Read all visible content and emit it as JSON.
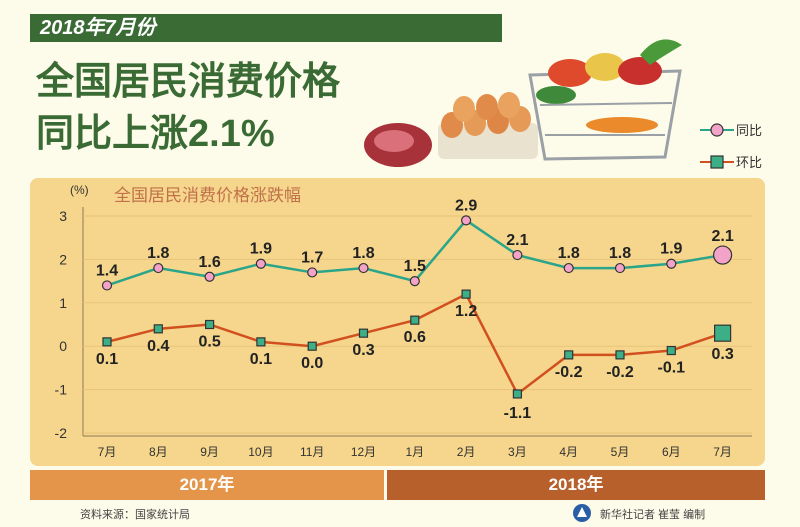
{
  "header": {
    "date": "2018年7月份",
    "headline_line1": "全国居民消费价格",
    "headline_line2": "同比上涨2.1%"
  },
  "legend": {
    "yoy": "同比",
    "mom": "环比"
  },
  "years": {
    "y2017": "2017年",
    "y2018": "2018年"
  },
  "footer": {
    "source": "资料来源：国家统计局",
    "credit": "新华社记者 崔莹 编制"
  },
  "colors": {
    "yoy_line": "#2aa58a",
    "yoy_marker": "#f4a3c8",
    "mom_line": "#d2501f",
    "mom_marker": "#3daf87",
    "title_green": "#3a6b35"
  },
  "chart_data": {
    "type": "line",
    "title": "全国居民消费价格涨跌幅",
    "ylabel": "(%)",
    "xlabel": "",
    "categories": [
      "7月",
      "8月",
      "9月",
      "10月",
      "11月",
      "12月",
      "1月",
      "2月",
      "3月",
      "4月",
      "5月",
      "6月",
      "7月"
    ],
    "yticks": [
      "3",
      "2",
      "1",
      "0",
      "-1",
      "-2"
    ],
    "ylim": [
      -2,
      3
    ],
    "series": [
      {
        "name": "同比",
        "values": [
          1.4,
          1.8,
          1.6,
          1.9,
          1.7,
          1.8,
          1.5,
          2.9,
          2.1,
          1.8,
          1.8,
          1.9,
          2.1
        ],
        "labels": [
          "1.4",
          "1.8",
          "1.6",
          "1.9",
          "1.7",
          "1.8",
          "1.5",
          "2.9",
          "2.1",
          "1.8",
          "1.8",
          "1.9",
          "2.1"
        ]
      },
      {
        "name": "环比",
        "values": [
          0.1,
          0.4,
          0.5,
          0.1,
          0.0,
          0.3,
          0.6,
          1.2,
          -1.1,
          -0.2,
          -0.2,
          -0.1,
          0.3
        ],
        "labels": [
          "0.1",
          "0.4",
          "0.5",
          "0.1",
          "0.0",
          "0.3",
          "0.6",
          "1.2",
          "-1.1",
          "-0.2",
          "-0.2",
          "-0.1",
          "0.3"
        ]
      }
    ]
  }
}
